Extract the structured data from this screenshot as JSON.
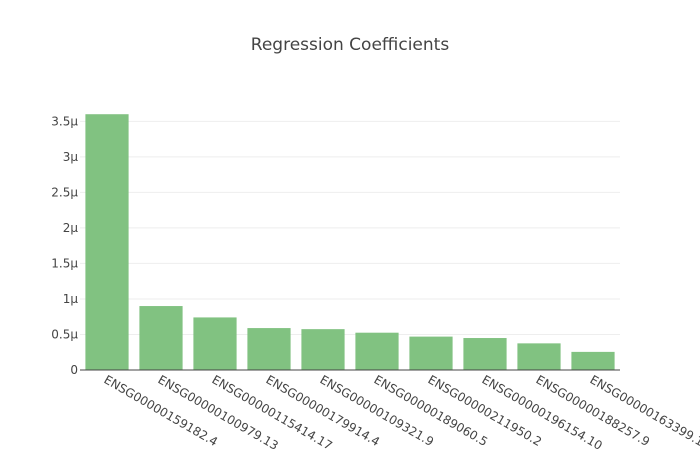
{
  "chart_data": {
    "type": "bar",
    "title": "Regression Coefficients",
    "xlabel": "",
    "ylabel": "",
    "categories": [
      "ENSG00000159182.4",
      "ENSG00000100979.13",
      "ENSG00000115414.17",
      "ENSG00000179914.4",
      "ENSG00000109321.9",
      "ENSG00000189060.5",
      "ENSG00000211950.2",
      "ENSG00000196154.10",
      "ENSG00000188257.9",
      "ENSG00000163399.1"
    ],
    "values": [
      3.6e-06,
      9e-07,
      7.4e-07,
      5.9e-07,
      5.75e-07,
      5.25e-07,
      4.7e-07,
      4.5e-07,
      3.75e-07,
      2.55e-07
    ],
    "ylim": [
      0,
      3.8e-06
    ],
    "yticks": [
      0,
      5e-07,
      1e-06,
      1.5e-06,
      2e-06,
      2.5e-06,
      3e-06,
      3.5e-06
    ],
    "ytick_labels": [
      "0",
      "0.5μ",
      "1μ",
      "1.5μ",
      "2μ",
      "2.5μ",
      "3μ",
      "3.5μ"
    ],
    "grid": true,
    "legend": "none",
    "bar_color": "#81c281"
  }
}
